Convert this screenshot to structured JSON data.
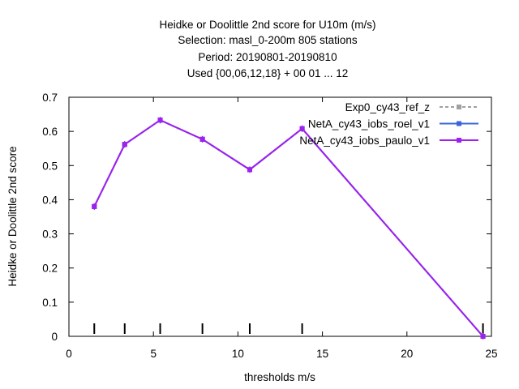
{
  "chart_data": {
    "type": "line",
    "title_lines": [
      "Heidke or Doolittle 2nd score  for U10m (m/s)",
      "Selection: masl_0-200m    805 stations",
      "Period: 20190801-20190810",
      "Used {00,06,12,18} + 00 01 ... 12"
    ],
    "xlabel": "thresholds m/s",
    "ylabel": "Heidke or Doolittle 2nd score",
    "xlim": [
      0,
      25
    ],
    "ylim": [
      0,
      0.7
    ],
    "xticks": [
      0,
      5,
      10,
      15,
      20,
      25
    ],
    "yticks": [
      0,
      0.1,
      0.2,
      0.3,
      0.4,
      0.5,
      0.6,
      0.7
    ],
    "ytick_labels": [
      "0",
      "0.1",
      "0.2",
      "0.3",
      "0.4",
      "0.5",
      "0.6",
      "0.7"
    ],
    "threshold_markers": [
      1.5,
      3.3,
      5.4,
      7.9,
      10.7,
      13.8,
      24.5
    ],
    "legend_position": "top-right",
    "grid": false,
    "series": [
      {
        "name": "Exp0_cy43_ref_z",
        "color": "#a0a0a0",
        "dashed": true,
        "x": [
          1.5,
          3.3,
          5.4,
          7.9,
          10.7,
          13.8,
          24.5
        ],
        "y": [
          0.38,
          0.562,
          0.633,
          0.577,
          0.488,
          0.608,
          0.0
        ]
      },
      {
        "name": "NetA_cy43_iobs_roel_v1",
        "color": "#3c64d8",
        "dashed": false,
        "x": [
          1.5,
          3.3,
          5.4,
          7.9,
          10.7,
          13.8,
          24.5
        ],
        "y": [
          0.38,
          0.562,
          0.633,
          0.577,
          0.488,
          0.608,
          0.0
        ]
      },
      {
        "name": "NetA_cy43_iobs_paulo_v1",
        "color": "#a020f0",
        "dashed": false,
        "x": [
          1.5,
          3.3,
          5.4,
          7.9,
          10.7,
          13.8,
          24.5
        ],
        "y": [
          0.38,
          0.562,
          0.633,
          0.577,
          0.488,
          0.608,
          0.0
        ]
      }
    ]
  }
}
